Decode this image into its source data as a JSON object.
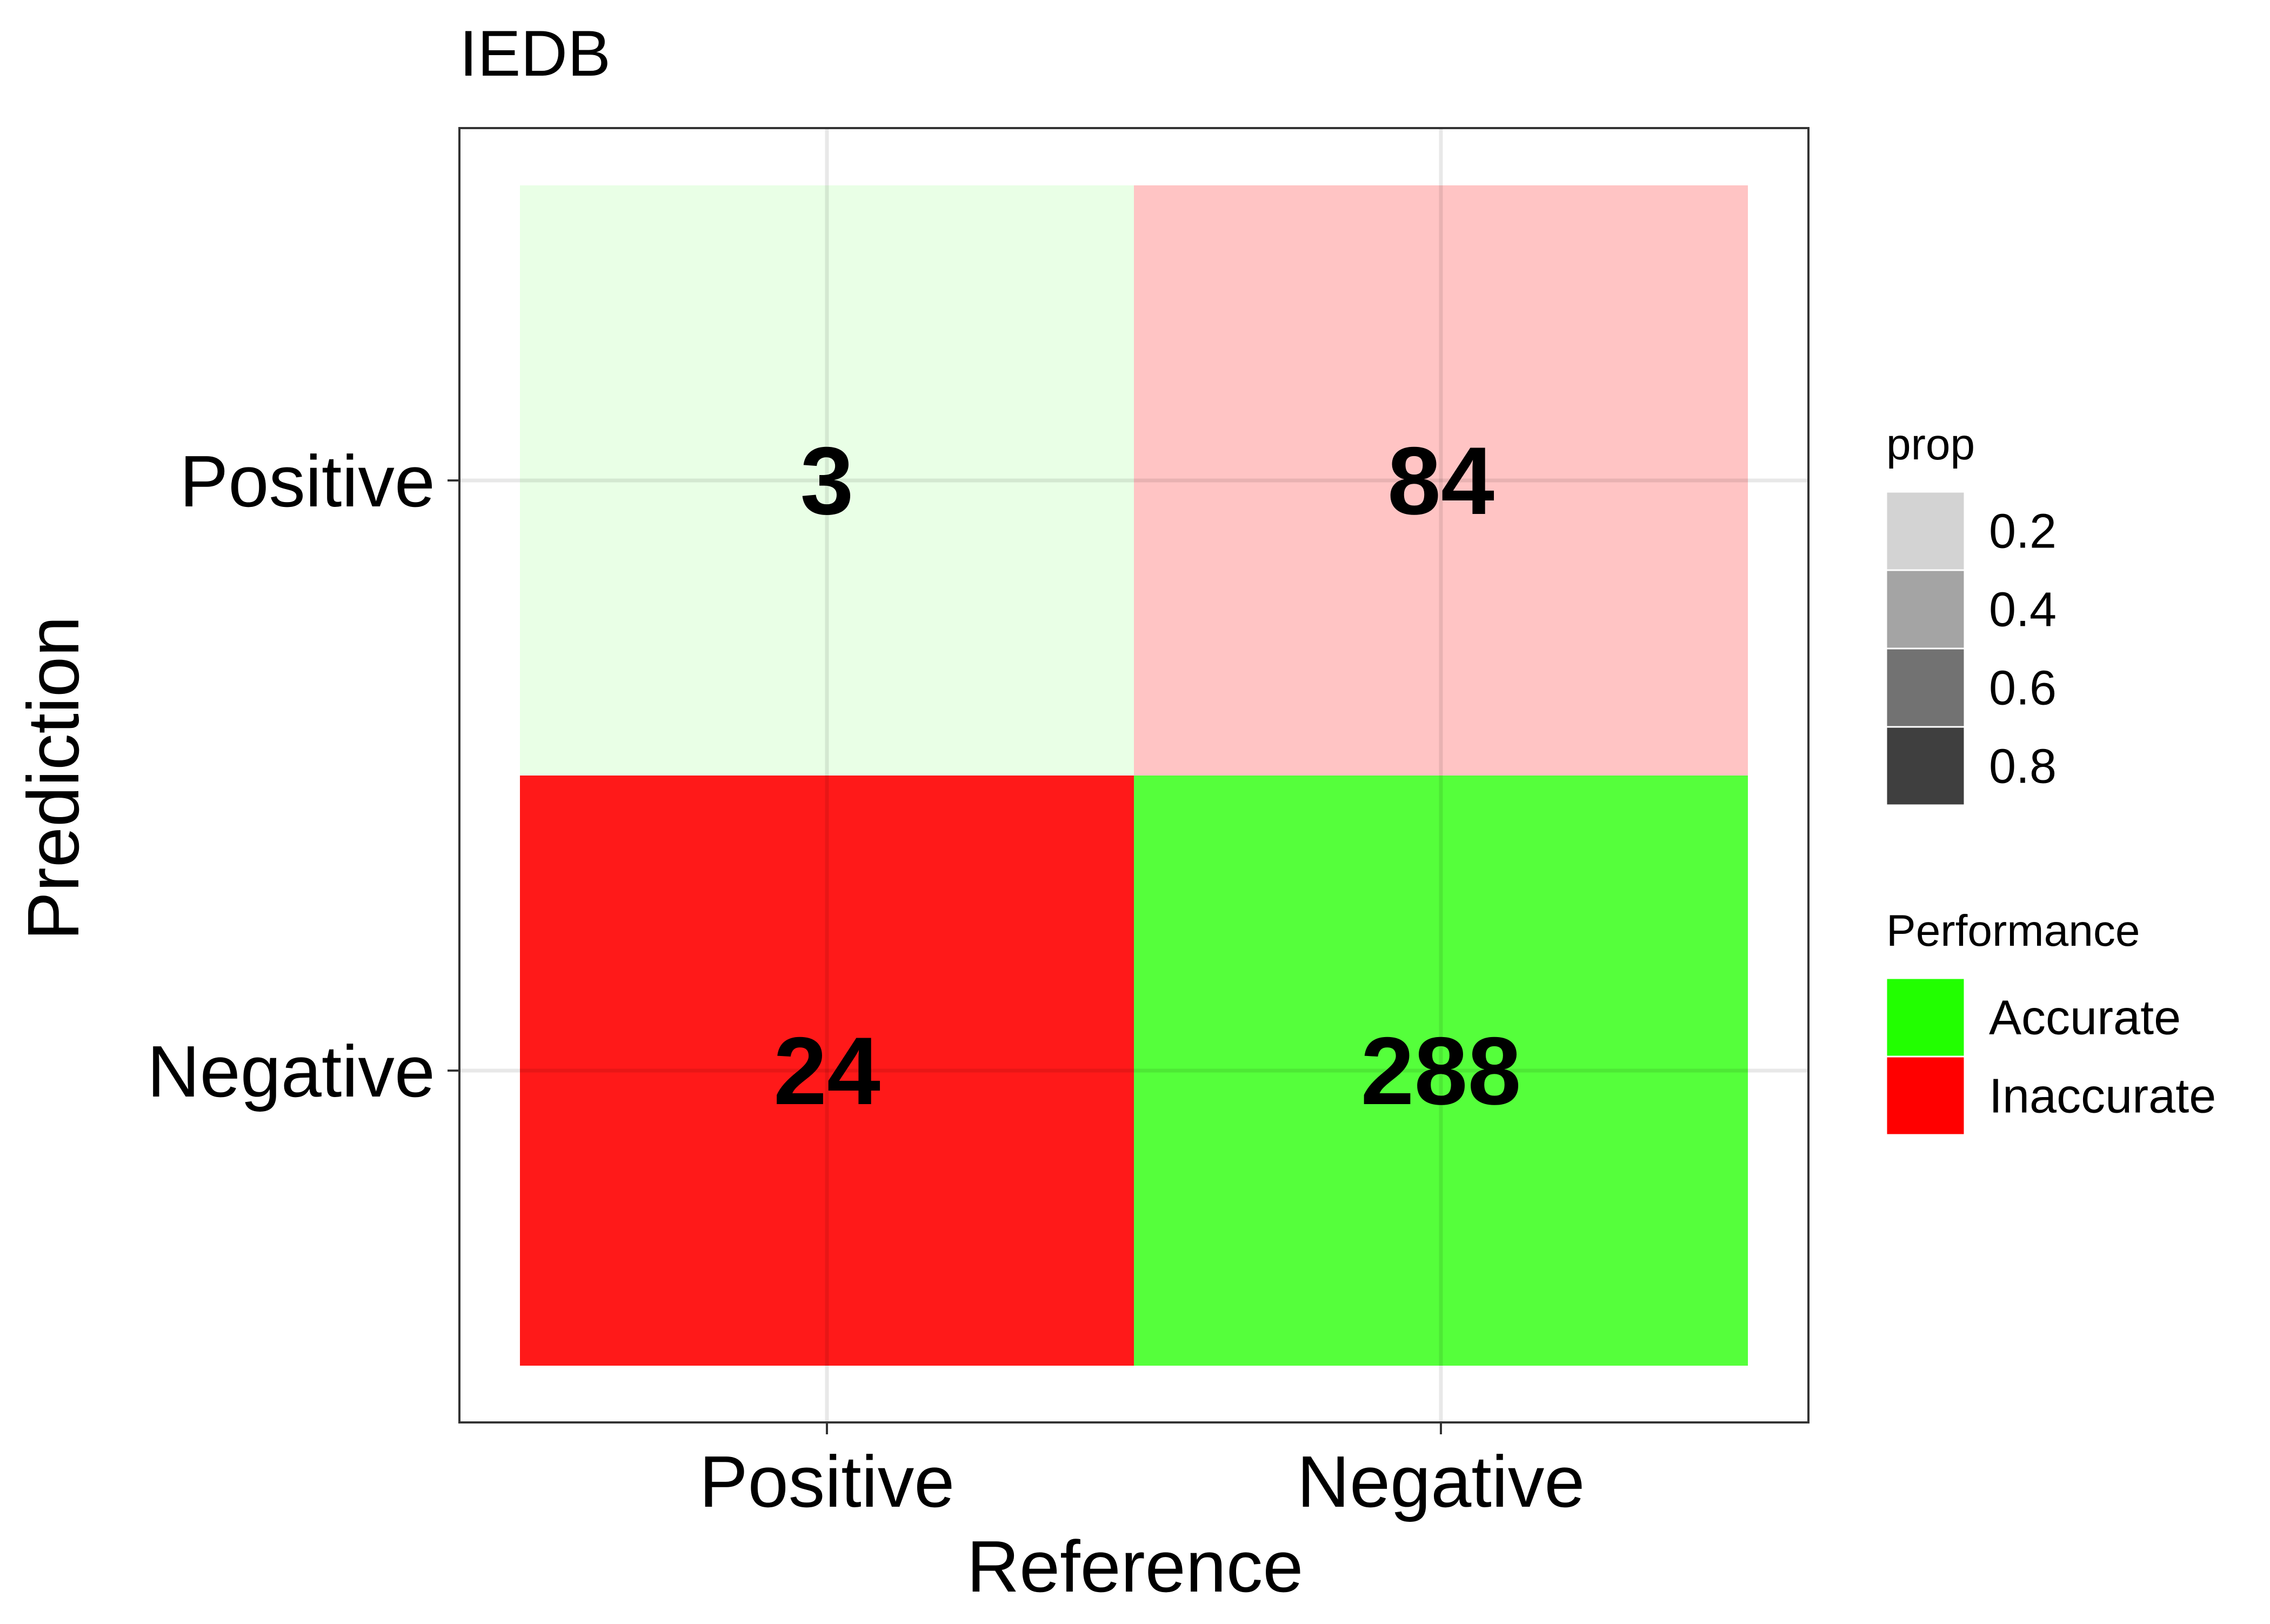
{
  "chart_data": {
    "type": "heatmap",
    "title": "IEDB",
    "xlabel": "Reference",
    "ylabel": "Prediction",
    "x_categories": [
      "Positive",
      "Negative"
    ],
    "y_categories": [
      "Positive",
      "Negative"
    ],
    "cells": [
      {
        "reference": "Positive",
        "prediction": "Positive",
        "value": 3,
        "label": "3",
        "performance": "Accurate",
        "prop": 0.1
      },
      {
        "reference": "Negative",
        "prediction": "Positive",
        "value": 84,
        "label": "84",
        "performance": "Inaccurate",
        "prop": 0.23
      },
      {
        "reference": "Positive",
        "prediction": "Negative",
        "value": 24,
        "label": "24",
        "performance": "Inaccurate",
        "prop": 0.9
      },
      {
        "reference": "Negative",
        "prediction": "Negative",
        "value": 288,
        "label": "288",
        "performance": "Accurate",
        "prop": 0.77
      }
    ],
    "grid": true,
    "legend_position": "right",
    "legends": {
      "prop": {
        "title": "prop",
        "breaks": [
          "0.2",
          "0.4",
          "0.6",
          "0.8"
        ],
        "colors": [
          "#d3d3d3",
          "#a4a4a4",
          "#727272",
          "#3f3f3f"
        ]
      },
      "performance": {
        "title": "Performance",
        "labels": [
          "Accurate",
          "Inaccurate"
        ],
        "colors": [
          "#22ff00",
          "#ff0000"
        ]
      }
    }
  }
}
